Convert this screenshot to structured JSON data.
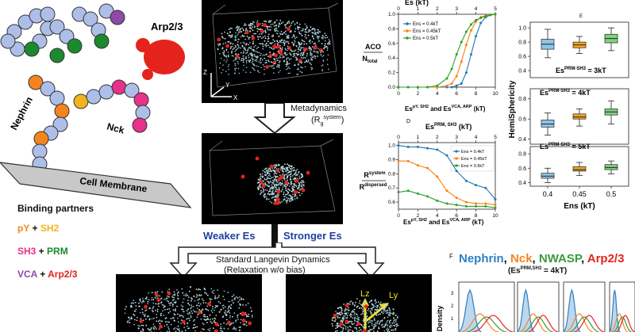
{
  "left": {
    "arp_label": "Arp2/3",
    "nephrin_label": "Nephrin",
    "nck_label": "Nck",
    "membrane_label": "Cell Membrane",
    "binding_title": "Binding partners",
    "pairs": [
      {
        "a": "pY",
        "plus": " + ",
        "b": "SH2",
        "a_color": "#f5841f",
        "b_color": "#f2b41e"
      },
      {
        "a": "SH3",
        "plus": " + ",
        "b": "PRM",
        "a_color": "#e8318a",
        "b_color": "#1b8a2e"
      },
      {
        "a": "VCA",
        "plus": " + ",
        "b": "Arp2/3",
        "a_color": "#8e4aa8",
        "b_color": "#e5231d"
      }
    ]
  },
  "middle": {
    "meta_label": "Metadynamics",
    "meta_sub": "(R",
    "meta_sub_sup": "system",
    "meta_sub_end": ")",
    "weaker": "Weaker Es",
    "stronger": "Stronger Es",
    "langevin": "Standard Langevin Dynamics",
    "relax": "(Relaxation w/o bias)",
    "axis_z": "Z",
    "axis_x": "X",
    "axis_y": "Y",
    "lz": "Lz",
    "ly": "Ly"
  },
  "panel_c": {
    "top_axis": "Es",
    "top_axis_unit": "(kT)",
    "ylabel_top": "ACO",
    "ylabel_bottom": "N",
    "ylabel_bottom_sub": "total",
    "xlabel": "Es",
    "xlabel_sup1": "pY, SH2",
    "xlabel_mid": " and Es",
    "xlabel_sup2": "VCA, ARP",
    "xlabel_unit": " (kT)",
    "legend": [
      "Ens = 0.4kT",
      "Ens = 0.45kT",
      "Ens = 0.5kT"
    ],
    "colors": [
      "#1f77b4",
      "#ff7f0e",
      "#2ca02c"
    ]
  },
  "panel_d": {
    "letter": "D",
    "top_axis": "Es",
    "top_axis_sup": "PRM, SH3",
    "top_axis_unit": " (kT)",
    "ylabel_top": "R",
    "ylabel_top_sup": "system",
    "ylabel_bottom": "R",
    "ylabel_bottom_sup": "dispersed",
    "xlabel": "Es",
    "xlabel_sup1": "pY, SH2",
    "xlabel_mid": " and Es",
    "xlabel_sup2": "VCA, ARP",
    "xlabel_unit": " (kT)",
    "legend": [
      "Ens = 0.4kT",
      "Ens = 0.45kT",
      "Ens = 0.5kT"
    ]
  },
  "panel_e": {
    "letter": "E",
    "ylabel": "HemiSphericity",
    "xlabel": "Ens (kT)",
    "xticks": [
      "0.4",
      "0.45",
      "0.5"
    ],
    "row_labels": [
      {
        "pre": "Es",
        "sup": "PRM-SH3",
        "post": " = 3kT"
      },
      {
        "pre": "Es",
        "sup": "PRM-SH3",
        "post": " = 4kT"
      },
      {
        "pre": "Es",
        "sup": "PRM-SH3",
        "post": " = 5kT"
      }
    ]
  },
  "panel_f": {
    "letter": "F",
    "title_parts": [
      {
        "text": "Nephrin",
        "color": "#2f7fc1"
      },
      {
        "text": ", ",
        "color": "#111111"
      },
      {
        "text": "Nck",
        "color": "#f5841f"
      },
      {
        "text": ", ",
        "color": "#111111"
      },
      {
        "text": "NWASP",
        "color": "#3a9a3a"
      },
      {
        "text": ", ",
        "color": "#111111"
      },
      {
        "text": "Arp2/3",
        "color": "#e5231d"
      }
    ],
    "subtitle_pre": "(Es",
    "subtitle_sup": "PRM,SH3",
    "subtitle_post": " = 4kT)",
    "ylabel": "Density",
    "yticks": [
      "3",
      "2",
      "1"
    ]
  },
  "chart_data": [
    {
      "type": "line",
      "panel": "C",
      "x": [
        0,
        1,
        2,
        3,
        4,
        5,
        5.5,
        6,
        6.5,
        7,
        7.5,
        8,
        8.5,
        9,
        9.5,
        10
      ],
      "xlim": [
        0,
        10
      ],
      "ylim": [
        0,
        1
      ],
      "xticks": [
        0,
        2,
        4,
        6,
        8,
        10
      ],
      "yticks": [
        0.0,
        0.2,
        0.4,
        0.6,
        0.8,
        1.0
      ],
      "top_xticks": [
        0,
        1,
        2,
        3,
        4,
        5
      ],
      "series": [
        {
          "name": "Ens = 0.4kT",
          "values": [
            0.0,
            0.0,
            0.0,
            0.0,
            0.0,
            0.0,
            0.0,
            0.02,
            0.05,
            0.2,
            0.45,
            0.7,
            0.88,
            0.96,
            0.99,
            1.0
          ]
        },
        {
          "name": "Ens = 0.45kT",
          "values": [
            0.0,
            0.0,
            0.0,
            0.0,
            0.0,
            0.02,
            0.05,
            0.15,
            0.35,
            0.58,
            0.78,
            0.9,
            0.96,
            0.98,
            0.99,
            1.0
          ]
        },
        {
          "name": "Ens = 0.5kT",
          "values": [
            0.0,
            0.0,
            0.0,
            0.0,
            0.02,
            0.12,
            0.25,
            0.45,
            0.62,
            0.76,
            0.86,
            0.92,
            0.95,
            0.97,
            0.99,
            1.0
          ]
        }
      ]
    },
    {
      "type": "line",
      "panel": "D",
      "x": [
        0,
        1,
        2,
        3,
        4,
        5,
        6,
        7,
        8,
        9,
        10
      ],
      "xlim": [
        0,
        10
      ],
      "ylim": [
        0.55,
        1.02
      ],
      "xticks": [
        0,
        2,
        4,
        6,
        8,
        10
      ],
      "yticks": [
        0.6,
        0.7,
        0.8,
        0.9,
        1.0
      ],
      "top_xticks": [
        0,
        1,
        2,
        3,
        4,
        5
      ],
      "series": [
        {
          "name": "Ens = 0.4kT",
          "values": [
            1.0,
            0.99,
            0.99,
            0.98,
            0.97,
            0.93,
            0.82,
            0.75,
            0.72,
            0.7,
            0.62
          ]
        },
        {
          "name": "Ens = 0.45kT",
          "values": [
            0.89,
            0.89,
            0.86,
            0.84,
            0.78,
            0.68,
            0.63,
            0.6,
            0.59,
            0.59,
            0.58
          ]
        },
        {
          "name": "Ens = 0.5kT",
          "values": [
            0.67,
            0.68,
            0.66,
            0.64,
            0.61,
            0.59,
            0.58,
            0.57,
            0.57,
            0.57,
            0.56
          ]
        }
      ]
    },
    {
      "type": "box",
      "panel": "E",
      "categories": [
        "0.4",
        "0.45",
        "0.5"
      ],
      "yticks_top": [
        0.4,
        0.6,
        0.8,
        1.0
      ],
      "yticks": [
        0.4,
        0.6,
        0.8
      ],
      "ylim": [
        0.3,
        1.08
      ],
      "colors": [
        "#8ec5e8",
        "#f5a623",
        "#7ed37e"
      ],
      "rows": [
        {
          "boxes": [
            {
              "q1": 0.7,
              "med": 0.77,
              "q3": 0.84,
              "lo": 0.58,
              "hi": 0.98
            },
            {
              "q1": 0.72,
              "med": 0.76,
              "q3": 0.8,
              "lo": 0.64,
              "hi": 0.88
            },
            {
              "q1": 0.79,
              "med": 0.85,
              "q3": 0.91,
              "lo": 0.68,
              "hi": 1.0
            }
          ]
        },
        {
          "boxes": [
            {
              "q1": 0.52,
              "med": 0.55,
              "q3": 0.59,
              "lo": 0.44,
              "hi": 0.66
            },
            {
              "q1": 0.6,
              "med": 0.62,
              "q3": 0.65,
              "lo": 0.53,
              "hi": 0.7
            },
            {
              "q1": 0.64,
              "med": 0.67,
              "q3": 0.7,
              "lo": 0.55,
              "hi": 0.78
            }
          ]
        },
        {
          "boxes": [
            {
              "q1": 0.46,
              "med": 0.49,
              "q3": 0.53,
              "lo": 0.4,
              "hi": 0.6
            },
            {
              "q1": 0.56,
              "med": 0.58,
              "q3": 0.62,
              "lo": 0.5,
              "hi": 0.68
            },
            {
              "q1": 0.58,
              "med": 0.61,
              "q3": 0.65,
              "lo": 0.52,
              "hi": 0.7
            }
          ]
        }
      ]
    }
  ]
}
